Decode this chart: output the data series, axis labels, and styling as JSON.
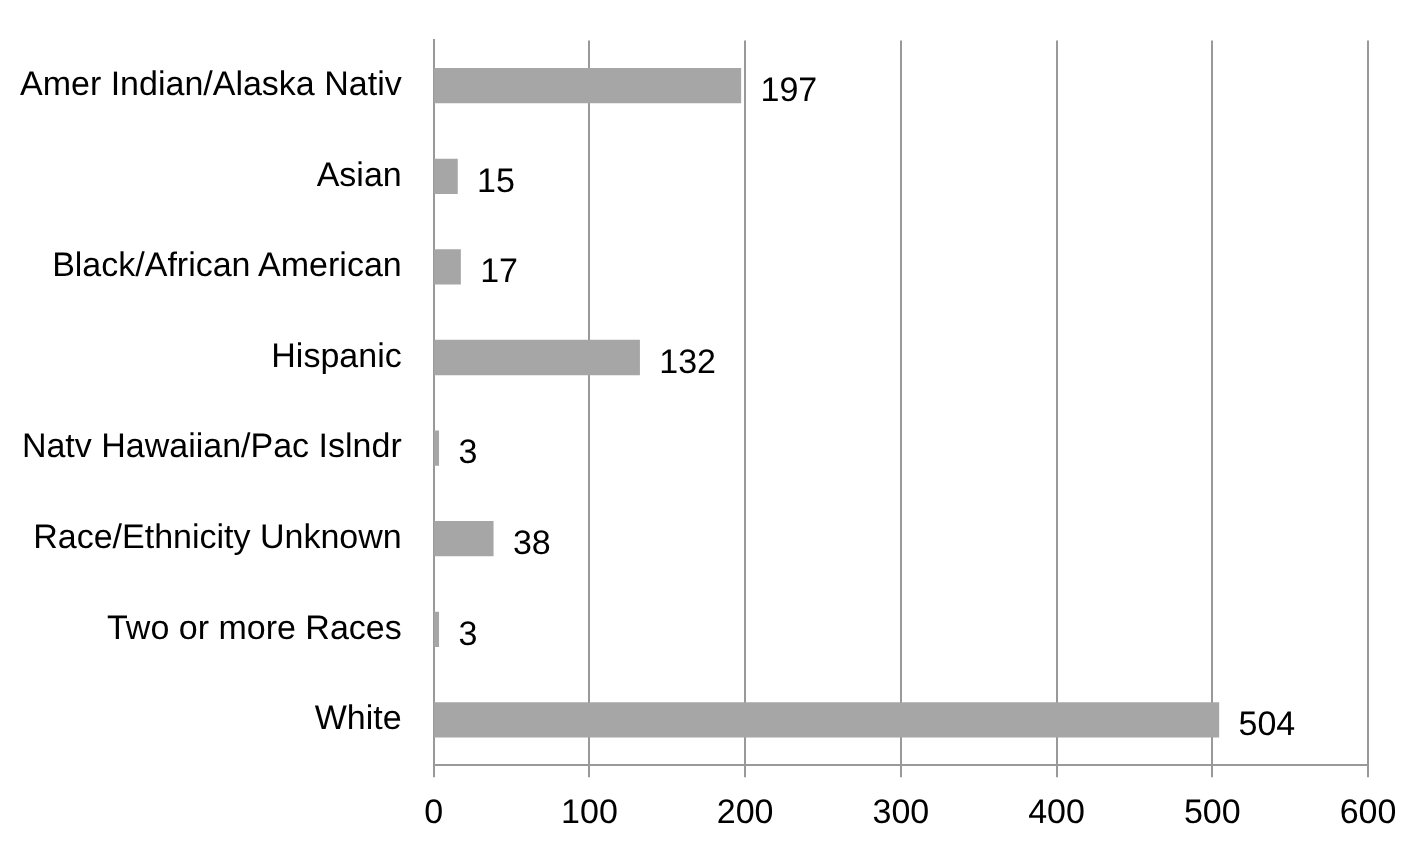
{
  "chart_data": {
    "type": "bar",
    "orientation": "horizontal",
    "categories": [
      "Amer Indian/Alaska Nativ",
      "Asian",
      "Black/African American",
      "Hispanic",
      "Natv Hawaiian/Pac Islndr",
      "Race/Ethnicity Unknown",
      "Two or more Races",
      "White"
    ],
    "values": [
      197,
      15,
      17,
      132,
      3,
      38,
      3,
      504
    ],
    "color": "#a6a6a6",
    "xlim": [
      0,
      600
    ],
    "xticks": [
      0,
      100,
      200,
      300,
      400,
      500,
      600
    ],
    "grid": "x",
    "data_labels": true,
    "legend": false
  }
}
